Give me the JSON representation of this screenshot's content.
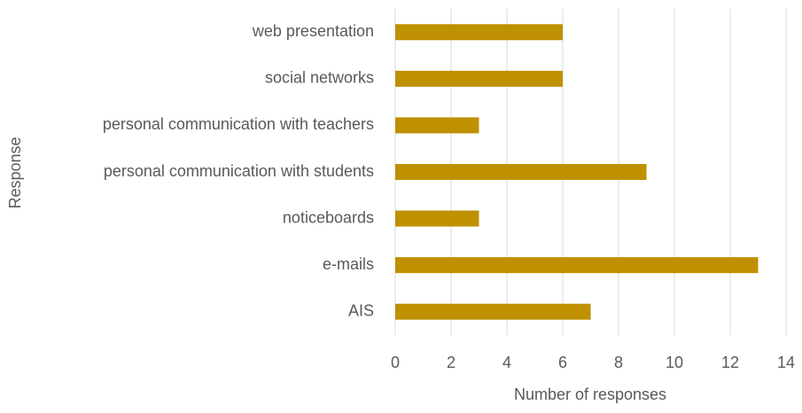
{
  "chart_data": {
    "type": "bar",
    "orientation": "horizontal",
    "categories": [
      "web presentation",
      "social networks",
      "personal communication with teachers",
      "personal communication with students",
      "noticeboards",
      "e-mails",
      "AIS"
    ],
    "values": [
      6,
      6,
      3,
      9,
      3,
      13,
      7
    ],
    "color": "#bf9000",
    "x_label": "Number of responses",
    "y_label": "Response",
    "xlim": [
      0,
      14
    ],
    "xticks": [
      0,
      2,
      4,
      6,
      8,
      10,
      12,
      14
    ],
    "grid": true
  }
}
